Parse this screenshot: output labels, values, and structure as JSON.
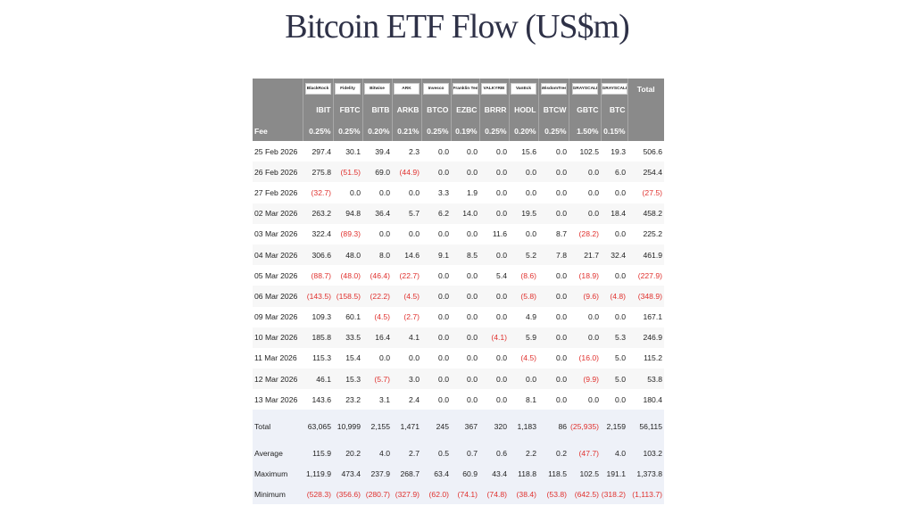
{
  "title": "Bitcoin ETF Flow (US$m)",
  "header": {
    "logos": [
      "BlackRock",
      "Fidelity",
      "Bitwise",
      "ARK",
      "Invesco",
      "Franklin Templeton",
      "VALKYRIE",
      "VanEck",
      "WisdomTree",
      "GRAYSCALE",
      "GRAYSCALE"
    ],
    "total_label": "Total",
    "tickers": [
      "IBIT",
      "FBTC",
      "BITB",
      "ARKB",
      "BTCO",
      "EZBC",
      "BRRR",
      "HODL",
      "BTCW",
      "GBTC",
      "BTC"
    ],
    "fee_label": "Fee",
    "fees": [
      "0.25%",
      "0.25%",
      "0.20%",
      "0.21%",
      "0.25%",
      "0.19%",
      "0.25%",
      "0.20%",
      "0.25%",
      "1.50%",
      "0.15%"
    ]
  },
  "rows": [
    {
      "date": "25 Feb 2026",
      "values": [
        "297.4",
        "30.1",
        "39.4",
        "2.3",
        "0.0",
        "0.0",
        "0.0",
        "15.6",
        "0.0",
        "102.5",
        "19.3"
      ],
      "total": "506.6"
    },
    {
      "date": "26 Feb 2026",
      "values": [
        "275.8",
        "(51.5)",
        "69.0",
        "(44.9)",
        "0.0",
        "0.0",
        "0.0",
        "0.0",
        "0.0",
        "0.0",
        "6.0"
      ],
      "total": "254.4"
    },
    {
      "date": "27 Feb 2026",
      "values": [
        "(32.7)",
        "0.0",
        "0.0",
        "0.0",
        "3.3",
        "1.9",
        "0.0",
        "0.0",
        "0.0",
        "0.0",
        "0.0"
      ],
      "total": "(27.5)"
    },
    {
      "date": "02 Mar 2026",
      "values": [
        "263.2",
        "94.8",
        "36.4",
        "5.7",
        "6.2",
        "14.0",
        "0.0",
        "19.5",
        "0.0",
        "0.0",
        "18.4"
      ],
      "total": "458.2"
    },
    {
      "date": "03 Mar 2026",
      "values": [
        "322.4",
        "(89.3)",
        "0.0",
        "0.0",
        "0.0",
        "0.0",
        "11.6",
        "0.0",
        "8.7",
        "(28.2)",
        "0.0"
      ],
      "total": "225.2"
    },
    {
      "date": "04 Mar 2026",
      "values": [
        "306.6",
        "48.0",
        "8.0",
        "14.6",
        "9.1",
        "8.5",
        "0.0",
        "5.2",
        "7.8",
        "21.7",
        "32.4"
      ],
      "total": "461.9"
    },
    {
      "date": "05 Mar 2026",
      "values": [
        "(88.7)",
        "(48.0)",
        "(46.4)",
        "(22.7)",
        "0.0",
        "0.0",
        "5.4",
        "(8.6)",
        "0.0",
        "(18.9)",
        "0.0"
      ],
      "total": "(227.9)"
    },
    {
      "date": "06 Mar 2026",
      "values": [
        "(143.5)",
        "(158.5)",
        "(22.2)",
        "(4.5)",
        "0.0",
        "0.0",
        "0.0",
        "(5.8)",
        "0.0",
        "(9.6)",
        "(4.8)"
      ],
      "total": "(348.9)"
    },
    {
      "date": "09 Mar 2026",
      "values": [
        "109.3",
        "60.1",
        "(4.5)",
        "(2.7)",
        "0.0",
        "0.0",
        "0.0",
        "4.9",
        "0.0",
        "0.0",
        "0.0"
      ],
      "total": "167.1"
    },
    {
      "date": "10 Mar 2026",
      "values": [
        "185.8",
        "33.5",
        "16.4",
        "4.1",
        "0.0",
        "0.0",
        "(4.1)",
        "5.9",
        "0.0",
        "0.0",
        "5.3"
      ],
      "total": "246.9"
    },
    {
      "date": "11 Mar 2026",
      "values": [
        "115.3",
        "15.4",
        "0.0",
        "0.0",
        "0.0",
        "0.0",
        "0.0",
        "(4.5)",
        "0.0",
        "(16.0)",
        "5.0"
      ],
      "total": "115.2"
    },
    {
      "date": "12 Mar 2026",
      "values": [
        "46.1",
        "15.3",
        "(5.7)",
        "3.0",
        "0.0",
        "0.0",
        "0.0",
        "0.0",
        "0.0",
        "(9.9)",
        "5.0"
      ],
      "total": "53.8"
    },
    {
      "date": "13 Mar 2026",
      "values": [
        "143.6",
        "23.2",
        "3.1",
        "2.4",
        "0.0",
        "0.0",
        "0.0",
        "8.1",
        "0.0",
        "0.0",
        "0.0"
      ],
      "total": "180.4"
    }
  ],
  "summary": [
    {
      "label": "Total",
      "values": [
        "63,065",
        "10,999",
        "2,155",
        "1,471",
        "245",
        "367",
        "320",
        "1,183",
        "86",
        "(25,935)",
        "2,159"
      ],
      "total": "56,115"
    },
    {
      "label": "Average",
      "values": [
        "115.9",
        "20.2",
        "4.0",
        "2.7",
        "0.5",
        "0.7",
        "0.6",
        "2.2",
        "0.2",
        "(47.7)",
        "4.0"
      ],
      "total": "103.2"
    },
    {
      "label": "Maximum",
      "values": [
        "1,119.9",
        "473.4",
        "237.9",
        "268.7",
        "63.4",
        "60.9",
        "43.4",
        "118.8",
        "118.5",
        "102.5",
        "191.1"
      ],
      "total": "1,373.8"
    },
    {
      "label": "Minimum",
      "values": [
        "(528.3)",
        "(356.6)",
        "(280.7)",
        "(327.9)",
        "(62.0)",
        "(74.1)",
        "(74.8)",
        "(38.4)",
        "(53.8)",
        "(642.5)",
        "(318.2)"
      ],
      "total": "(1,113.7)"
    }
  ],
  "colors": {
    "header_bg": "#8a8a8a",
    "negative": "#e0312e",
    "summary_bg": "#eef1f8",
    "title": "#2e3147"
  }
}
